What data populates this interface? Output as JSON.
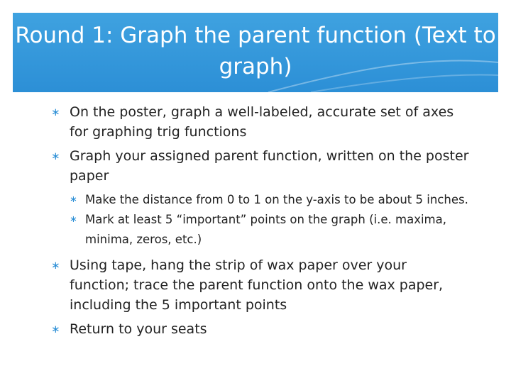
{
  "title": "Round 1: Graph the parent function (Text to graph)",
  "bullets": [
    {
      "text": "On the poster, graph a well-labeled, accurate set of axes for graphing trig functions",
      "sub": []
    },
    {
      "text": "Graph your assigned parent function, written on the poster paper",
      "sub": [
        "Make the distance from 0 to 1 on the y-axis to be about 5 inches.",
        "Mark at least 5 “important” points on the graph (i.e. maxima, minima, zeros, etc.)"
      ]
    },
    {
      "text": "Using tape, hang the strip of wax paper over your function; trace the parent function onto the wax paper, including the 5 important points",
      "sub": []
    },
    {
      "text": "Return to your seats",
      "sub": []
    }
  ]
}
